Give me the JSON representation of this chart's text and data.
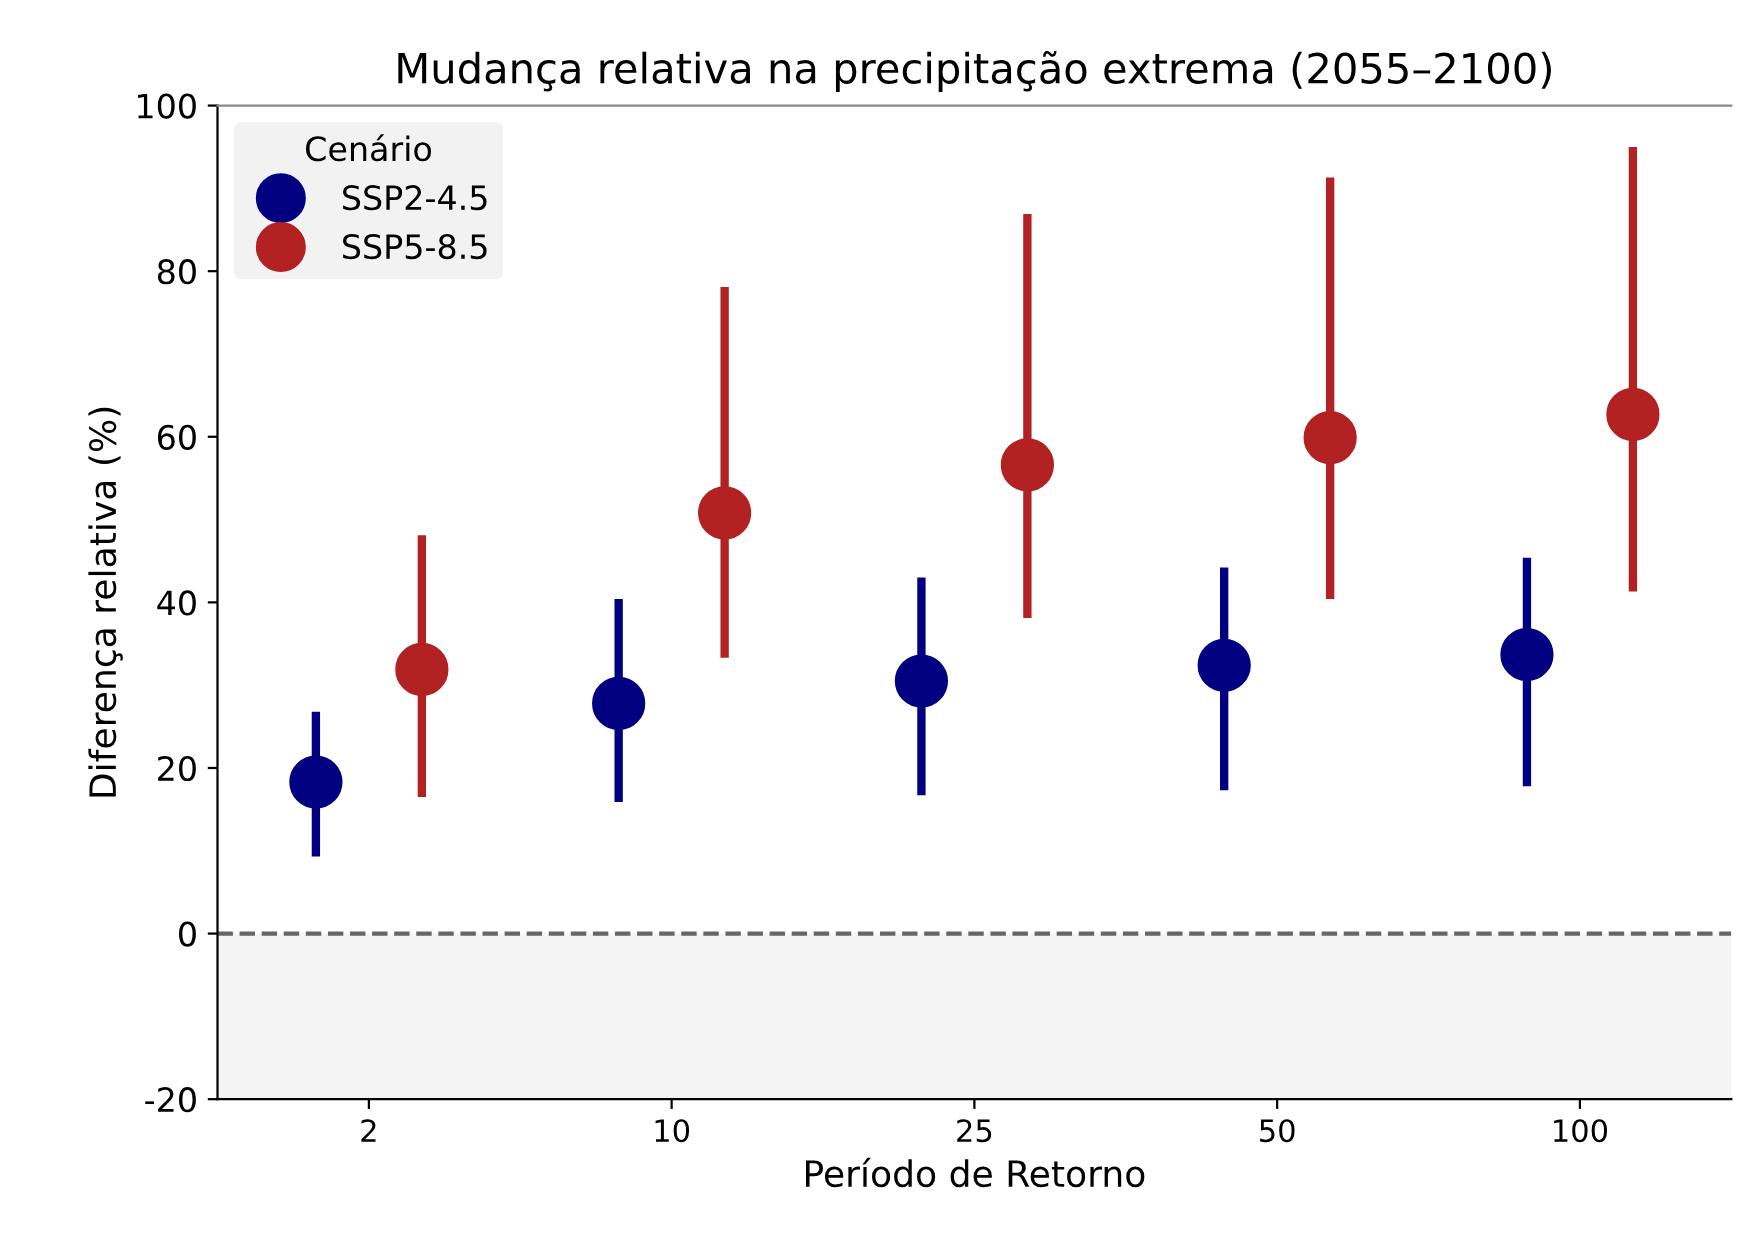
{
  "chart_data": {
    "type": "scatter",
    "title": "Mudança relativa na precipitação extrema (2055–2100)",
    "xlabel": "Período de Retorno",
    "ylabel": "Diferença relativa (%)",
    "legend_title": "Cenário",
    "categories": [
      "2",
      "10",
      "25",
      "50",
      "100"
    ],
    "series": [
      {
        "name": "SSP2-4.5",
        "color": "#000080",
        "values": [
          18.3,
          27.8,
          30.5,
          32.4,
          33.7
        ],
        "errors": [
          [
            9.3,
            26.8
          ],
          [
            15.9,
            40.4
          ],
          [
            16.7,
            43.0
          ],
          [
            17.3,
            44.2
          ],
          [
            17.8,
            45.4
          ]
        ]
      },
      {
        "name": "SSP5-8.5",
        "color": "#b22222",
        "values": [
          31.9,
          50.8,
          56.6,
          59.9,
          62.7
        ],
        "errors": [
          [
            16.5,
            48.1
          ],
          [
            33.3,
            78.1
          ],
          [
            38.1,
            86.9
          ],
          [
            40.4,
            91.3
          ],
          [
            41.3,
            95.0
          ]
        ]
      }
    ],
    "ylim": [
      -20,
      100
    ],
    "yticks": [
      -20,
      0,
      20,
      40,
      60,
      80,
      100
    ],
    "ref_lines": [
      {
        "axis": "y",
        "value": 0,
        "color": "#666666",
        "line_style": "dashed"
      }
    ],
    "bands": [
      {
        "axis": "y",
        "from": -20,
        "to": 0,
        "color": "#f4f4f4"
      }
    ],
    "marker": "circle",
    "legend": "top left",
    "grid": false
  }
}
